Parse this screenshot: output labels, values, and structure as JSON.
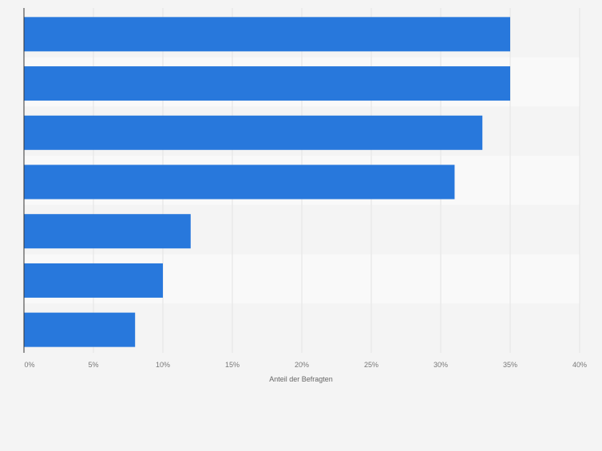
{
  "chart_data": {
    "type": "bar",
    "orientation": "horizontal",
    "categories": [
      "",
      "",
      "",
      "",
      "",
      "",
      ""
    ],
    "values": [
      35,
      35,
      33,
      31,
      12,
      10,
      8
    ],
    "xlabel": "Anteil der Befragten",
    "ylabel": "",
    "xlim": [
      0,
      40
    ],
    "xticks": [
      0,
      5,
      10,
      15,
      20,
      25,
      30,
      35,
      40
    ],
    "xtick_labels": [
      "0%",
      "5%",
      "10%",
      "15%",
      "20%",
      "25%",
      "30%",
      "35%",
      "40%"
    ],
    "grid": true,
    "legend": "none",
    "colors": {
      "bar": "#2878dc",
      "band_light": "#f4f4f4",
      "band_lighter": "#f9f9f9",
      "grid": "#e3e3e3",
      "axis": "#333333",
      "tick_text": "#777777"
    }
  }
}
